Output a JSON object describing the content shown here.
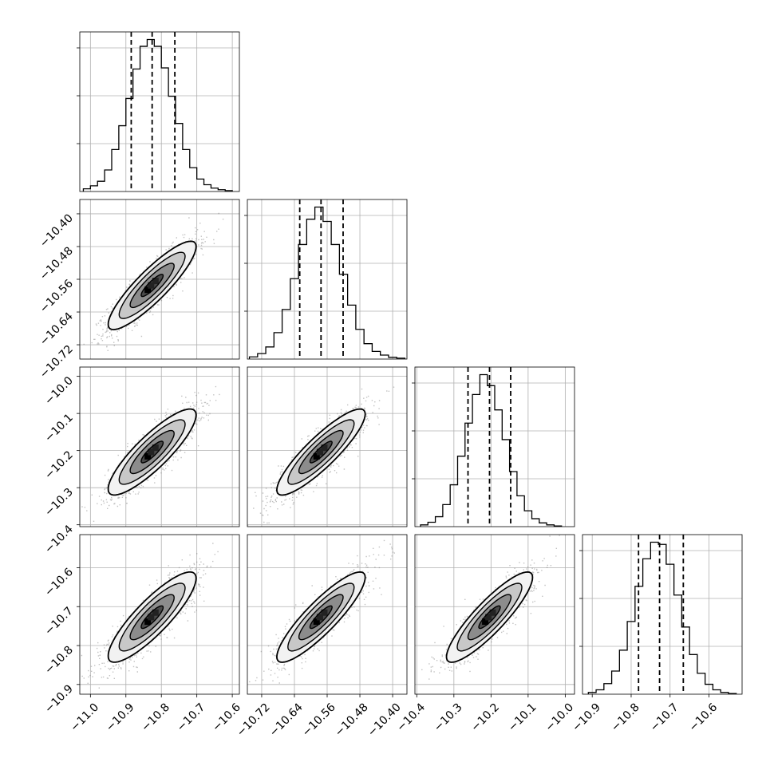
{
  "chart_data": {
    "type": "corner",
    "grid": true,
    "parameters": [
      {
        "range": [
          -11.03,
          -10.58
        ],
        "ticks": [
          -11.0,
          -10.9,
          -10.8,
          -10.7,
          -10.6
        ],
        "tick_labels": [
          "−11.0",
          "−10.9",
          "−10.8",
          "−10.7",
          "−10.6"
        ],
        "quantiles": [
          -10.885,
          -10.826,
          -10.762
        ]
      },
      {
        "range": [
          -10.755,
          -10.365
        ],
        "ticks": [
          -10.72,
          -10.64,
          -10.56,
          -10.48,
          -10.4
        ],
        "tick_labels": [
          "−10.72",
          "−10.64",
          "−10.56",
          "−10.48",
          "−10.40"
        ],
        "quantiles": [
          -10.627,
          -10.575,
          -10.521
        ]
      },
      {
        "range": [
          -10.405,
          -9.975
        ],
        "ticks": [
          -10.4,
          -10.3,
          -10.2,
          -10.1,
          -10.0
        ],
        "tick_labels": [
          "−10.4",
          "−10.3",
          "−10.2",
          "−10.1",
          "−10.0"
        ],
        "quantiles": [
          -10.262,
          -10.204,
          -10.147
        ]
      },
      {
        "range": [
          -10.925,
          -10.515
        ],
        "ticks": [
          -10.9,
          -10.8,
          -10.7,
          -10.6
        ],
        "tick_labels": [
          "−10.9",
          "−10.8",
          "−10.7",
          "−10.6"
        ],
        "quantiles": [
          -10.781,
          -10.727,
          -10.666
        ]
      }
    ],
    "marginal_histograms": [
      {
        "parameter": 0,
        "bin_edges": [
          -11.02,
          -11.0,
          -10.98,
          -10.96,
          -10.94,
          -10.92,
          -10.9,
          -10.88,
          -10.86,
          -10.84,
          -10.82,
          -10.8,
          -10.78,
          -10.76,
          -10.74,
          -10.72,
          -10.7,
          -10.68,
          -10.66,
          -10.64,
          -10.62,
          -10.6
        ],
        "counts": [
          12,
          25,
          45,
          95,
          185,
          290,
          410,
          540,
          640,
          670,
          640,
          545,
          420,
          300,
          185,
          105,
          55,
          30,
          15,
          8,
          4
        ]
      },
      {
        "parameter": 1,
        "bin_edges": [
          -10.75,
          -10.73,
          -10.71,
          -10.69,
          -10.67,
          -10.65,
          -10.63,
          -10.61,
          -10.59,
          -10.57,
          -10.55,
          -10.53,
          -10.51,
          -10.49,
          -10.47,
          -10.45,
          -10.43,
          -10.41,
          -10.39,
          -10.37
        ],
        "counts": [
          10,
          25,
          55,
          120,
          225,
          365,
          520,
          635,
          690,
          625,
          520,
          385,
          245,
          135,
          70,
          35,
          18,
          8,
          4
        ]
      },
      {
        "parameter": 2,
        "bin_edges": [
          -10.39,
          -10.37,
          -10.35,
          -10.33,
          -10.31,
          -10.29,
          -10.27,
          -10.25,
          -10.23,
          -10.21,
          -10.19,
          -10.17,
          -10.15,
          -10.13,
          -10.11,
          -10.09,
          -10.07,
          -10.05,
          -10.03,
          -10.01
        ],
        "counts": [
          8,
          20,
          45,
          100,
          190,
          320,
          470,
          600,
          690,
          640,
          530,
          395,
          250,
          140,
          72,
          36,
          17,
          8,
          3
        ]
      },
      {
        "parameter": 3,
        "bin_edges": [
          -10.91,
          -10.89,
          -10.87,
          -10.85,
          -10.83,
          -10.81,
          -10.79,
          -10.77,
          -10.75,
          -10.73,
          -10.71,
          -10.69,
          -10.67,
          -10.65,
          -10.63,
          -10.61,
          -10.59,
          -10.57,
          -10.55,
          -10.53
        ],
        "counts": [
          8,
          20,
          48,
          105,
          200,
          330,
          490,
          615,
          690,
          680,
          590,
          450,
          305,
          180,
          95,
          45,
          20,
          8,
          3
        ]
      }
    ],
    "joint_distributions": [
      {
        "x": 0,
        "y": 1,
        "mean": [
          -10.826,
          -10.575
        ],
        "sd": [
          0.062,
          0.054
        ],
        "corr": 0.88
      },
      {
        "x": 0,
        "y": 2,
        "mean": [
          -10.826,
          -10.204
        ],
        "sd": [
          0.062,
          0.058
        ],
        "corr": 0.86
      },
      {
        "x": 1,
        "y": 2,
        "mean": [
          -10.575,
          -10.204
        ],
        "sd": [
          0.054,
          0.058
        ],
        "corr": 0.88
      },
      {
        "x": 0,
        "y": 3,
        "mean": [
          -10.826,
          -10.727
        ],
        "sd": [
          0.062,
          0.058
        ],
        "corr": 0.86
      },
      {
        "x": 1,
        "y": 3,
        "mean": [
          -10.575,
          -10.727
        ],
        "sd": [
          0.054,
          0.058
        ],
        "corr": 0.88
      },
      {
        "x": 2,
        "y": 3,
        "mean": [
          -10.204,
          -10.727
        ],
        "sd": [
          0.058,
          0.058
        ],
        "corr": 0.88
      }
    ],
    "contour_levels_sigma": [
      0.5,
      1.0,
      1.5,
      2.0
    ]
  }
}
